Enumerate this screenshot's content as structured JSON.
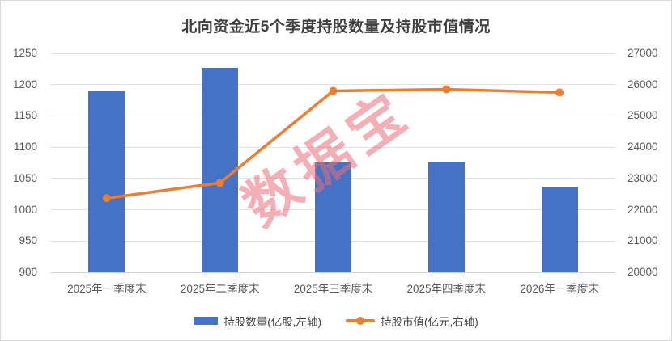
{
  "chart_data": {
    "type": "bar+line combo",
    "title": "北向资金近5个季度持股数量及持股市值情况",
    "categories": [
      "2025年一季度末",
      "2025年二季度末",
      "2025年三季度末",
      "2025年四季度末",
      "2026年一季度末"
    ],
    "series": [
      {
        "name": "持股数量(亿股,左轴)",
        "type": "bar",
        "axis": "left",
        "color": "#4472C4",
        "values": [
          1190,
          1227,
          1076,
          1077,
          1036
        ]
      },
      {
        "name": "持股市值(亿元,右轴)",
        "type": "line",
        "axis": "right",
        "color": "#ED7D31",
        "values": [
          22370,
          22860,
          25800,
          25850,
          25750
        ]
      }
    ],
    "left_axis": {
      "min": 900,
      "max": 1250,
      "step": 50,
      "ticks": [
        "1250",
        "1200",
        "1150",
        "1100",
        "1050",
        "1000",
        "950",
        "900"
      ]
    },
    "right_axis": {
      "min": 20000,
      "max": 27000,
      "step": 1000,
      "ticks": [
        "27000",
        "26000",
        "25000",
        "24000",
        "23000",
        "22000",
        "21000",
        "20000"
      ]
    },
    "grid": true,
    "legend_position": "bottom",
    "watermark": {
      "text": "数据宝",
      "color": "#E96E78",
      "opacity": 0.55,
      "rotation_deg": -35
    }
  }
}
